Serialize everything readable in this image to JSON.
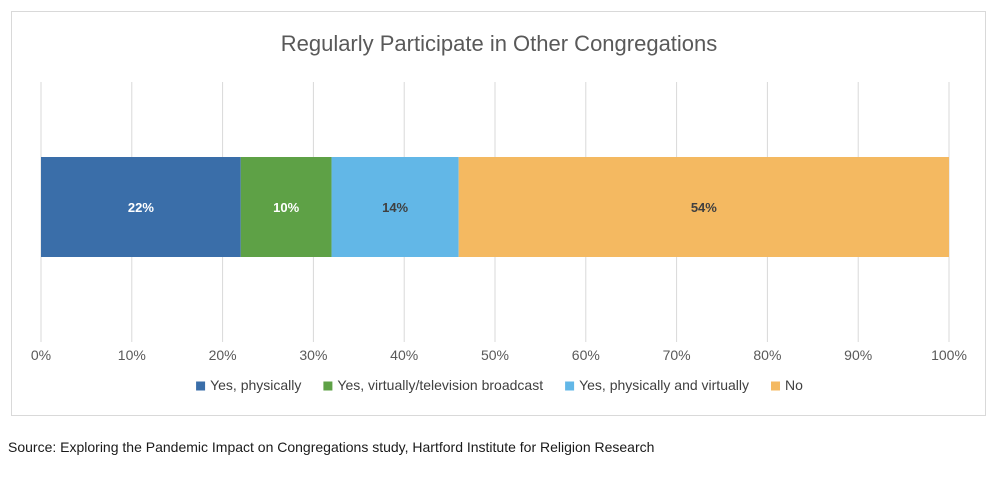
{
  "chart_data": {
    "type": "bar",
    "orientation": "horizontal",
    "stacked": true,
    "title": "Regularly Participate in Other Congregations",
    "xlim": [
      0,
      100
    ],
    "x_ticks": [
      "0%",
      "10%",
      "20%",
      "30%",
      "40%",
      "50%",
      "60%",
      "70%",
      "80%",
      "90%",
      "100%"
    ],
    "grid": true,
    "legend_position": "bottom",
    "series": [
      {
        "name": "Yes, physically",
        "value": 22,
        "label": "22%",
        "color": "#3a6ea9",
        "label_color": "#ffffff"
      },
      {
        "name": "Yes, virtually/television broadcast",
        "value": 10,
        "label": "10%",
        "color": "#5ea146",
        "label_color": "#ffffff"
      },
      {
        "name": "Yes, physically and virtually",
        "value": 14,
        "label": "14%",
        "color": "#62b7e7",
        "label_color": "#404040"
      },
      {
        "name": "No",
        "value": 54,
        "label": "54%",
        "color": "#f4b961",
        "label_color": "#404040"
      }
    ]
  },
  "footer": {
    "source": "Source: Exploring the Pandemic Impact on Congregations study, Hartford Institute for Religion Research"
  }
}
